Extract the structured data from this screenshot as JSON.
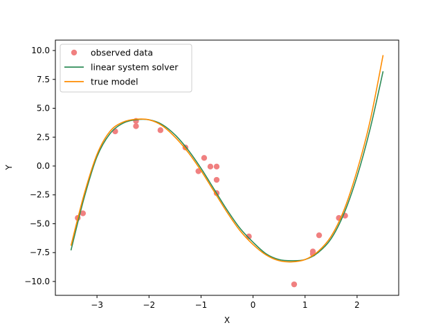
{
  "chart_data": {
    "type": "scatter",
    "title": "",
    "xlabel": "X",
    "ylabel": "Y",
    "xlim": [
      -3.8,
      2.8
    ],
    "ylim": [
      -11.2,
      10.9
    ],
    "x_ticks": [
      -3,
      -2,
      -1,
      0,
      1,
      2
    ],
    "x_tick_labels": [
      "−3",
      "−2",
      "−1",
      "0",
      "1",
      "2"
    ],
    "y_ticks": [
      -10.0,
      -7.5,
      -5.0,
      -2.5,
      0.0,
      2.5,
      5.0,
      7.5,
      10.0
    ],
    "y_tick_labels": [
      "−10.0",
      "−7.5",
      "−5.0",
      "−2.5",
      "0.0",
      "2.5",
      "5.0",
      "7.5",
      "10.0"
    ],
    "grid": false,
    "legend_position": "top-left",
    "series": [
      {
        "name": "observed data",
        "kind": "scatter",
        "color": "#f08080",
        "points": [
          [
            -3.37,
            -4.5
          ],
          [
            -3.27,
            -4.1
          ],
          [
            -2.65,
            3.0
          ],
          [
            -2.25,
            3.9
          ],
          [
            -2.25,
            3.45
          ],
          [
            -1.78,
            3.1
          ],
          [
            -1.3,
            1.6
          ],
          [
            -1.05,
            -0.45
          ],
          [
            -0.94,
            0.7
          ],
          [
            -0.82,
            -0.05
          ],
          [
            -0.7,
            -0.05
          ],
          [
            -0.7,
            -1.2
          ],
          [
            -0.7,
            -2.35
          ],
          [
            -0.08,
            -6.1
          ],
          [
            0.79,
            -10.25
          ],
          [
            1.15,
            -7.4
          ],
          [
            1.15,
            -7.6
          ],
          [
            1.27,
            -6.0
          ],
          [
            1.65,
            -4.5
          ],
          [
            1.77,
            -4.3
          ]
        ]
      },
      {
        "name": "linear system solver",
        "kind": "line",
        "color": "#2e8b57",
        "x": [
          -3.5,
          -3.25,
          -3.0,
          -2.75,
          -2.5,
          -2.25,
          -2.0,
          -1.75,
          -1.5,
          -1.25,
          -1.0,
          -0.75,
          -0.5,
          -0.25,
          0.0,
          0.25,
          0.5,
          0.75,
          1.0,
          1.25,
          1.5,
          1.75,
          2.0,
          2.25,
          2.5
        ],
        "y": [
          -7.3,
          -2.8,
          0.8,
          2.8,
          3.7,
          4.0,
          4.0,
          3.6,
          2.7,
          1.4,
          -0.2,
          -2.0,
          -3.8,
          -5.4,
          -6.6,
          -7.6,
          -8.1,
          -8.2,
          -8.1,
          -7.5,
          -6.3,
          -4.1,
          -0.9,
          3.2,
          8.2
        ]
      },
      {
        "name": "true model",
        "kind": "line",
        "color": "#ff8c00",
        "x": [
          -3.5,
          -3.25,
          -3.0,
          -2.75,
          -2.5,
          -2.25,
          -2.0,
          -1.75,
          -1.5,
          -1.25,
          -1.0,
          -0.75,
          -0.5,
          -0.25,
          0.0,
          0.25,
          0.5,
          0.75,
          1.0,
          1.25,
          1.5,
          1.75,
          2.0,
          2.25,
          2.5
        ],
        "y": [
          -6.9,
          -2.5,
          1.0,
          3.0,
          3.8,
          4.05,
          4.0,
          3.5,
          2.5,
          1.2,
          -0.4,
          -2.2,
          -4.0,
          -5.6,
          -6.8,
          -7.7,
          -8.2,
          -8.3,
          -8.1,
          -7.4,
          -6.1,
          -3.8,
          -0.4,
          3.9,
          9.6
        ]
      }
    ]
  }
}
